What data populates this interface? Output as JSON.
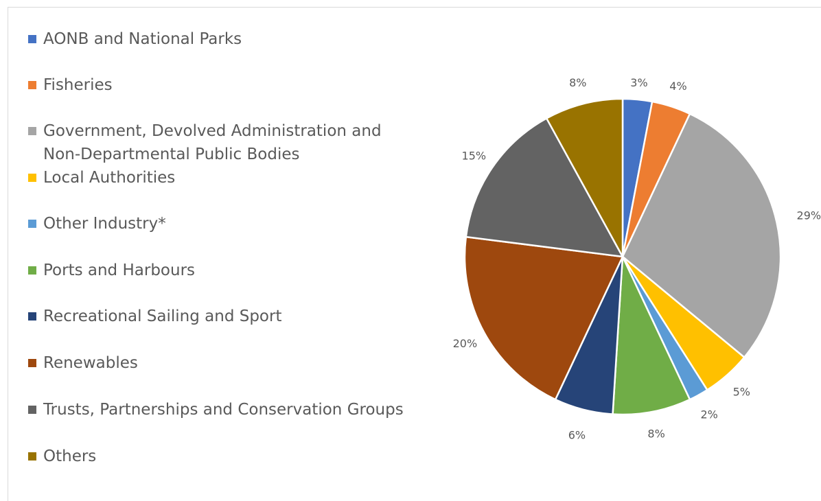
{
  "chart_data": {
    "type": "pie",
    "title": "",
    "legend_position": "left",
    "categories": [
      "AONB and National Parks",
      "Fisheries",
      "Government, Devolved Administration and Non-Departmental Public Bodies",
      "Local Authorities",
      "Other Industry*",
      "Ports and Harbours",
      "Recreational Sailing and Sport",
      "Renewables",
      "Trusts, Partnerships and Conservation Groups",
      "Others"
    ],
    "values": [
      3,
      4,
      29,
      5,
      2,
      8,
      6,
      20,
      15,
      8
    ],
    "data_labels": [
      "3%",
      "4%",
      "29%",
      "5%",
      "2%",
      "8%",
      "6%",
      "20%",
      "15%",
      "8%"
    ],
    "colors": [
      "#4472c4",
      "#ed7d31",
      "#a5a5a5",
      "#ffc000",
      "#5b9bd5",
      "#70ad47",
      "#264478",
      "#9e480e",
      "#636363",
      "#997300"
    ],
    "legend_lines": [
      [
        "AONB and National Parks"
      ],
      [
        "Fisheries"
      ],
      [
        "Government, Devolved Administration and",
        "Non-Departmental Public Bodies"
      ],
      [
        "Local Authorities"
      ],
      [
        "Other Industry*"
      ],
      [
        "Ports and Harbours"
      ],
      [
        "Recreational Sailing and Sport"
      ],
      [
        "Renewables"
      ],
      [
        "Trusts, Partnerships and Conservation Groups"
      ],
      [
        "Others"
      ]
    ]
  }
}
